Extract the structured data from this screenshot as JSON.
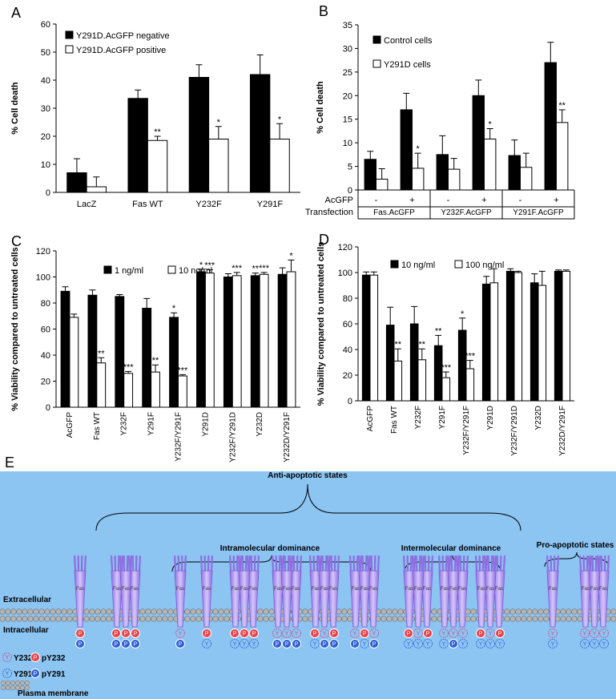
{
  "chart_data": [
    {
      "type": "bar",
      "panel_label": "A",
      "ylabel": "% Cell death",
      "categories": [
        "LacZ",
        "Fas WT",
        "Y232F",
        "Y291F"
      ],
      "series": [
        {
          "name": "Y291D.AcGFP negative",
          "color": "#000000",
          "values": [
            7,
            33.5,
            41,
            42
          ],
          "errors": [
            5,
            3,
            4.5,
            7
          ],
          "significance": [
            null,
            null,
            null,
            null
          ]
        },
        {
          "name": "Y291D.AcGFP positive",
          "color": "#ffffff",
          "values": [
            2,
            18.5,
            19,
            19
          ],
          "errors": [
            3.5,
            1.5,
            4.5,
            5.5
          ],
          "significance": [
            null,
            "**",
            "*",
            "*"
          ]
        }
      ],
      "ylim": [
        0,
        60
      ],
      "yticks": [
        0,
        10,
        20,
        30,
        40,
        50,
        60
      ],
      "legend": "upper left",
      "grid": false
    },
    {
      "type": "bar",
      "panel_label": "B",
      "ylabel": "% Cell death",
      "categories": [
        "-",
        "+",
        "-",
        "+",
        "-",
        "+"
      ],
      "row_labels": [
        "AcGFP",
        "Transfection"
      ],
      "groups": [
        "Fas.AcGFP",
        "Y232F.AcGFP",
        "Y291F.AcGFP"
      ],
      "series": [
        {
          "name": "Control cells",
          "color": "#000000",
          "values": [
            6.5,
            17,
            7.5,
            20,
            7.3,
            27
          ],
          "errors": [
            1.7,
            3.5,
            4,
            3.3,
            3.3,
            4.3
          ],
          "significance": [
            null,
            null,
            null,
            null,
            null,
            null
          ]
        },
        {
          "name": "Y291D cells",
          "color": "#ffffff",
          "values": [
            2.3,
            4.6,
            4.4,
            10.8,
            4.8,
            14.3
          ],
          "errors": [
            2.2,
            3.2,
            2.3,
            2.2,
            3,
            2.7
          ],
          "significance": [
            null,
            "*",
            null,
            "*",
            null,
            "**"
          ]
        }
      ],
      "ylim": [
        0,
        35
      ],
      "yticks": [
        0,
        5,
        10,
        15,
        20,
        25,
        30,
        35
      ],
      "legend": "upper left",
      "grid": false
    },
    {
      "type": "bar",
      "panel_label": "C",
      "ylabel": "% Viability compared to untreated cells",
      "categories": [
        "AcGFP",
        "Fas WT",
        "Y232F",
        "Y291F",
        "Y232F/Y291F",
        "Y291D",
        "Y232F/Y291D",
        "Y232D",
        "Y232D/Y291F"
      ],
      "series": [
        {
          "name": "1 ng/ml",
          "color": "#000000",
          "values": [
            89,
            86,
            85,
            76,
            69,
            104,
            100,
            101,
            102
          ],
          "errors": [
            3.5,
            4,
            1.5,
            7.5,
            3.5,
            2,
            2.5,
            2,
            5
          ],
          "significance": [
            null,
            null,
            null,
            null,
            "*",
            "*",
            null,
            "**",
            null
          ]
        },
        {
          "name": "10 ng/ml",
          "color": "#ffffff",
          "values": [
            69,
            34,
            26,
            27,
            24,
            103,
            101,
            102,
            104
          ],
          "errors": [
            2.5,
            4,
            1.5,
            5.5,
            1,
            2.5,
            2.5,
            1.5,
            9
          ],
          "significance": [
            null,
            "**",
            "***",
            "**",
            "***",
            "***",
            "***",
            "***",
            "*"
          ]
        }
      ],
      "ylim": [
        0,
        120
      ],
      "yticks": [
        0,
        20,
        40,
        60,
        80,
        100,
        120
      ],
      "xtick_rotation": -90,
      "legend": "upper left",
      "grid": false
    },
    {
      "type": "bar",
      "panel_label": "D",
      "ylabel": "% Viability compared to untreated cells",
      "categories": [
        "AcGFP",
        "Fas WT",
        "Y232F",
        "Y291F",
        "Y232F/Y291F",
        "Y291D",
        "Y232F/Y291D",
        "Y232D",
        "Y232D/Y291F"
      ],
      "series": [
        {
          "name": "10 ng/ml",
          "color": "#000000",
          "values": [
            98,
            59,
            60,
            43,
            55,
            91,
            101,
            92,
            101
          ],
          "errors": [
            2.5,
            14,
            13.5,
            8,
            9.5,
            6,
            2,
            7,
            1
          ],
          "significance": [
            null,
            null,
            null,
            "**",
            "*",
            null,
            null,
            null,
            null
          ]
        },
        {
          "name": "100 ng/ml",
          "color": "#ffffff",
          "values": [
            98,
            31,
            32,
            18,
            25,
            92,
            100,
            90,
            101
          ],
          "errors": [
            2.5,
            9.5,
            8.5,
            4.5,
            6.5,
            11,
            1,
            11,
            1
          ],
          "significance": [
            null,
            "**",
            "**",
            "***",
            "***",
            null,
            null,
            null,
            null
          ]
        }
      ],
      "ylim": [
        0,
        120
      ],
      "yticks": [
        0,
        20,
        40,
        60,
        80,
        100,
        120
      ],
      "xtick_rotation": -90,
      "legend": "upper left",
      "grid": false
    }
  ],
  "diagram": {
    "panel_label": "E",
    "anti_apoptotic": "Anti-apoptotic states",
    "intramolecular": "Intramolecular dominance",
    "intermolecular": "Intermolecular dominance",
    "pro_apoptotic": "Pro-apoptotic states",
    "extracellular": "Extracellular",
    "intracellular": "Intracellular",
    "receptor_label": "Fas",
    "phospho_symbol": "P",
    "tyrosine_symbol": "Y",
    "legend": {
      "y232": "Y232",
      "py232": "pY232",
      "y291": "Y291",
      "py291": "pY291",
      "membrane": "Plasma membrane"
    }
  }
}
